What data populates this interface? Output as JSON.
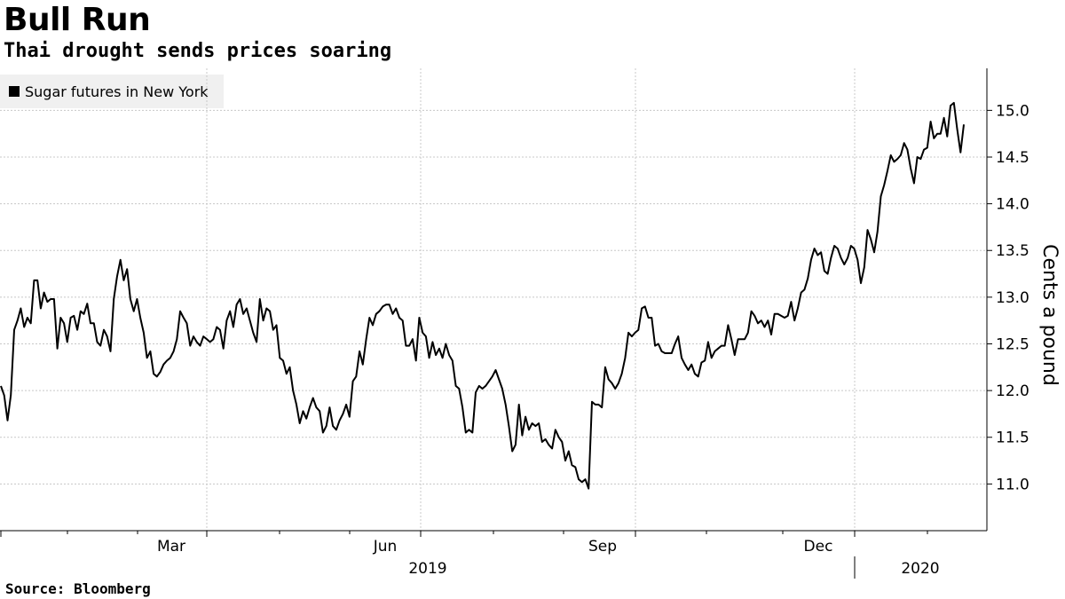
{
  "header": {
    "title": "Bull Run",
    "subtitle": "Thai drought sends prices soaring"
  },
  "footer": {
    "source": "Source: Bloomberg"
  },
  "chart_data": {
    "type": "line",
    "ylabel": "Cents a pound",
    "ylim": [
      10.5,
      15.45
    ],
    "y_ticks": [
      11.0,
      11.5,
      12.0,
      12.5,
      13.0,
      13.5,
      14.0,
      14.5,
      15.0
    ],
    "y_tick_labels": [
      "11.0",
      "11.5",
      "12.0",
      "12.5",
      "13.0",
      "13.5",
      "14.0",
      "14.5",
      "15.0"
    ],
    "y_axis_position": "right",
    "grid": true,
    "legend_position": "top-left",
    "x_month_labels": [
      "Mar",
      "Jun",
      "Sep",
      "Dec"
    ],
    "x_year_labels": [
      "2019",
      "2020"
    ],
    "series": [
      {
        "name": "Sugar futures in New York",
        "color": "#000000",
        "values": [
          12.05,
          11.95,
          11.68,
          11.95,
          12.65,
          12.75,
          12.88,
          12.68,
          12.78,
          12.72,
          13.18,
          13.18,
          12.88,
          13.05,
          12.95,
          12.98,
          12.98,
          12.45,
          12.78,
          12.72,
          12.52,
          12.78,
          12.8,
          12.65,
          12.85,
          12.82,
          12.93,
          12.72,
          12.72,
          12.52,
          12.48,
          12.65,
          12.58,
          12.42,
          12.98,
          13.22,
          13.4,
          13.18,
          13.3,
          12.98,
          12.85,
          12.98,
          12.78,
          12.62,
          12.35,
          12.42,
          12.18,
          12.15,
          12.2,
          12.28,
          12.32,
          12.35,
          12.42,
          12.55,
          12.85,
          12.78,
          12.72,
          12.48,
          12.58,
          12.52,
          12.48,
          12.58,
          12.55,
          12.52,
          12.55,
          12.68,
          12.65,
          12.45,
          12.75,
          12.85,
          12.68,
          12.92,
          12.98,
          12.82,
          12.88,
          12.75,
          12.62,
          12.52,
          12.98,
          12.75,
          12.88,
          12.85,
          12.65,
          12.7,
          12.35,
          12.32,
          12.18,
          12.25,
          12.0,
          11.85,
          11.65,
          11.78,
          11.7,
          11.82,
          11.92,
          11.82,
          11.78,
          11.55,
          11.62,
          11.82,
          11.62,
          11.58,
          11.68,
          11.75,
          11.85,
          11.72,
          12.1,
          12.15,
          12.42,
          12.28,
          12.55,
          12.78,
          12.7,
          12.82,
          12.85,
          12.9,
          12.92,
          12.92,
          12.82,
          12.88,
          12.78,
          12.75,
          12.48,
          12.48,
          12.55,
          12.32,
          12.78,
          12.62,
          12.58,
          12.35,
          12.52,
          12.38,
          12.45,
          12.35,
          12.5,
          12.38,
          12.32,
          12.05,
          12.02,
          11.82,
          11.55,
          11.58,
          11.55,
          11.98,
          12.05,
          12.02,
          12.05,
          12.1,
          12.15,
          12.22,
          12.12,
          12.02,
          11.85,
          11.62,
          11.35,
          11.42,
          11.85,
          11.52,
          11.72,
          11.58,
          11.65,
          11.62,
          11.65,
          11.45,
          11.48,
          11.42,
          11.38,
          11.58,
          11.5,
          11.45,
          11.25,
          11.35,
          11.2,
          11.18,
          11.05,
          11.02,
          11.05,
          10.95,
          11.88,
          11.85,
          11.85,
          11.82,
          12.25,
          12.12,
          12.08,
          12.02,
          12.08,
          12.18,
          12.35,
          12.62,
          12.58,
          12.62,
          12.65,
          12.88,
          12.9,
          12.78,
          12.78,
          12.48,
          12.5,
          12.42,
          12.4,
          12.4,
          12.4,
          12.5,
          12.58,
          12.35,
          12.28,
          12.22,
          12.28,
          12.18,
          12.15,
          12.3,
          12.32,
          12.52,
          12.35,
          12.42,
          12.45,
          12.48,
          12.48,
          12.7,
          12.55,
          12.38,
          12.55,
          12.55,
          12.55,
          12.62,
          12.85,
          12.8,
          12.72,
          12.75,
          12.68,
          12.75,
          12.6,
          12.82,
          12.82,
          12.8,
          12.78,
          12.8,
          12.95,
          12.75,
          12.88,
          13.05,
          13.08,
          13.2,
          13.4,
          13.52,
          13.45,
          13.48,
          13.28,
          13.25,
          13.42,
          13.55,
          13.52,
          13.42,
          13.35,
          13.42,
          13.55,
          13.52,
          13.4,
          13.15,
          13.32,
          13.72,
          13.62,
          13.48,
          13.7,
          14.08,
          14.2,
          14.35,
          14.52,
          14.45,
          14.48,
          14.52,
          14.65,
          14.58,
          14.38,
          14.22,
          14.5,
          14.48,
          14.58,
          14.6,
          14.88,
          14.7,
          14.75,
          14.75,
          14.92,
          14.72,
          15.05,
          15.08,
          14.8,
          14.55,
          14.85
        ]
      }
    ]
  }
}
